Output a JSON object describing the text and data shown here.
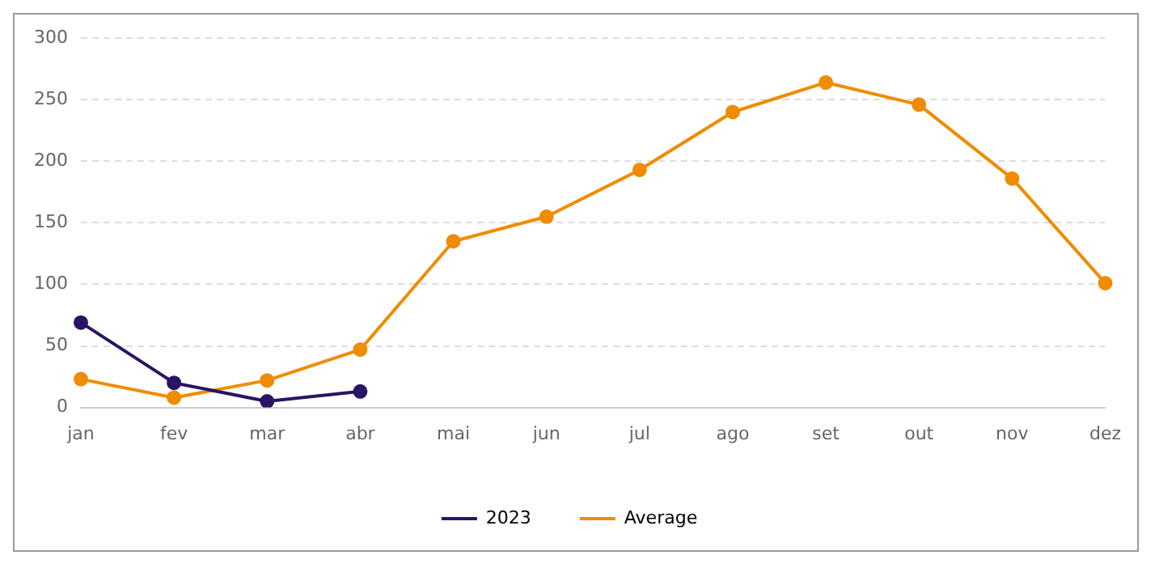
{
  "chart_data": {
    "type": "line",
    "categories": [
      "jan",
      "fev",
      "mar",
      "abr",
      "mai",
      "jun",
      "jul",
      "ago",
      "set",
      "out",
      "nov",
      "dez"
    ],
    "series": [
      {
        "name": "2023",
        "color": "#2a1463",
        "values": [
          69,
          20,
          5,
          13,
          null,
          null,
          null,
          null,
          null,
          null,
          null,
          null
        ]
      },
      {
        "name": "Average",
        "color": "#ef8c00",
        "values": [
          23,
          8,
          22,
          47,
          135,
          155,
          193,
          240,
          264,
          246,
          186,
          101
        ]
      }
    ],
    "ylim": [
      0,
      300
    ],
    "yticks": [
      0,
      50,
      100,
      150,
      200,
      250,
      300
    ],
    "grid": "y",
    "legend": "bottom",
    "marker": "circle",
    "line_style": "solid"
  }
}
